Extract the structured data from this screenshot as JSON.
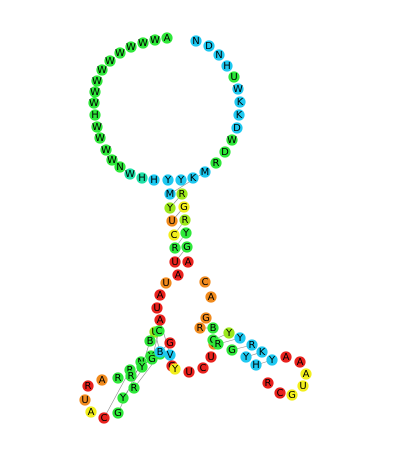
{
  "diagram": {
    "type": "rna-secondary-structure",
    "palette": {
      "red": "#e8211d",
      "orange": "#f08a1d",
      "yellow": "#f2ee1c",
      "lime": "#9be81c",
      "green": "#2ee83a",
      "teal": "#1ee0a6",
      "cyan": "#1ec8f0"
    },
    "nucleotides": [
      {
        "l": "A",
        "c": "green"
      },
      {
        "l": "W",
        "c": "green"
      },
      {
        "l": "W",
        "c": "green"
      },
      {
        "l": "W",
        "c": "green"
      },
      {
        "l": "W",
        "c": "green"
      },
      {
        "l": "W",
        "c": "green"
      },
      {
        "l": "W",
        "c": "green"
      },
      {
        "l": "W",
        "c": "green"
      },
      {
        "l": "W",
        "c": "green"
      },
      {
        "l": "W",
        "c": "green"
      },
      {
        "l": "H",
        "c": "green"
      },
      {
        "l": "W",
        "c": "green"
      },
      {
        "l": "W",
        "c": "green"
      },
      {
        "l": "W",
        "c": "green"
      },
      {
        "l": "W",
        "c": "green"
      },
      {
        "l": "N",
        "c": "green"
      },
      {
        "l": "W",
        "c": "teal"
      },
      {
        "l": "H",
        "c": "teal"
      },
      {
        "l": "H",
        "c": "cyan"
      },
      {
        "l": "Y",
        "c": "cyan"
      },
      {
        "l": "M",
        "c": "cyan"
      },
      {
        "l": "Y",
        "c": "lime"
      },
      {
        "l": "U",
        "c": "orange"
      },
      {
        "l": "C",
        "c": "yellow"
      },
      {
        "l": "R",
        "c": "green"
      },
      {
        "l": "U",
        "c": "red"
      },
      {
        "l": "A",
        "c": "red"
      },
      {
        "l": "U",
        "c": "orange"
      },
      {
        "l": "A",
        "c": "red"
      },
      {
        "l": "U",
        "c": "red"
      },
      {
        "l": "A",
        "c": "red"
      },
      {
        "l": "U",
        "c": "lime"
      },
      {
        "l": "C",
        "c": "green"
      },
      {
        "l": "B",
        "c": "green"
      },
      {
        "l": "G",
        "c": "red"
      },
      {
        "l": "C",
        "c": "green"
      },
      {
        "l": "Y",
        "c": "green"
      },
      {
        "l": "N",
        "c": "green"
      },
      {
        "l": "R",
        "c": "green"
      },
      {
        "l": "R",
        "c": "green"
      },
      {
        "l": "A",
        "c": "orange"
      },
      {
        "l": "R",
        "c": "red"
      },
      {
        "l": "U",
        "c": "orange"
      },
      {
        "l": "A",
        "c": "yellow"
      },
      {
        "l": "C",
        "c": "red"
      },
      {
        "l": "G",
        "c": "green"
      },
      {
        "l": "Y",
        "c": "green"
      },
      {
        "l": "R",
        "c": "green"
      },
      {
        "l": "R",
        "c": "green"
      },
      {
        "l": "Y",
        "c": "green"
      },
      {
        "l": "G",
        "c": "green"
      },
      {
        "l": "B",
        "c": "cyan"
      },
      {
        "l": "V",
        "c": "cyan"
      },
      {
        "l": "G",
        "c": "red"
      },
      {
        "l": "Y",
        "c": "yellow"
      },
      {
        "l": "U",
        "c": "red"
      },
      {
        "l": "C",
        "c": "red"
      },
      {
        "l": "U",
        "c": "red"
      },
      {
        "l": "G",
        "c": "orange"
      },
      {
        "l": "R",
        "c": "orange"
      },
      {
        "l": "C",
        "c": "green"
      },
      {
        "l": "R",
        "c": "green"
      },
      {
        "l": "G",
        "c": "green"
      },
      {
        "l": "Y",
        "c": "cyan"
      },
      {
        "l": "H",
        "c": "cyan"
      },
      {
        "l": "R",
        "c": "red"
      },
      {
        "l": "C",
        "c": "red"
      },
      {
        "l": "G",
        "c": "yellow"
      },
      {
        "l": "U",
        "c": "yellow"
      },
      {
        "l": "A",
        "c": "yellow"
      },
      {
        "l": "A",
        "c": "red"
      },
      {
        "l": "A",
        "c": "red"
      },
      {
        "l": "Y",
        "c": "cyan"
      },
      {
        "l": "K",
        "c": "cyan"
      },
      {
        "l": "R",
        "c": "cyan"
      },
      {
        "l": "Y",
        "c": "cyan"
      },
      {
        "l": "Y",
        "c": "lime"
      },
      {
        "l": "B",
        "c": "green"
      },
      {
        "l": "G",
        "c": "orange"
      },
      {
        "l": "A",
        "c": "orange"
      },
      {
        "l": "C",
        "c": "orange"
      },
      {
        "l": "A",
        "c": "red"
      },
      {
        "l": "G",
        "c": "green"
      },
      {
        "l": "Y",
        "c": "green"
      },
      {
        "l": "R",
        "c": "lime"
      },
      {
        "l": "G",
        "c": "yellow"
      },
      {
        "l": "R",
        "c": "lime"
      },
      {
        "l": "Y",
        "c": "cyan"
      },
      {
        "l": "K",
        "c": "cyan"
      },
      {
        "l": "M",
        "c": "cyan"
      },
      {
        "l": "R",
        "c": "green"
      },
      {
        "l": "D",
        "c": "green"
      },
      {
        "l": "W",
        "c": "green"
      },
      {
        "l": "D",
        "c": "cyan"
      },
      {
        "l": "K",
        "c": "cyan"
      },
      {
        "l": "K",
        "c": "cyan"
      },
      {
        "l": "W",
        "c": "cyan"
      },
      {
        "l": "U",
        "c": "green"
      },
      {
        "l": "H",
        "c": "cyan"
      },
      {
        "l": "N",
        "c": "cyan"
      },
      {
        "l": "D",
        "c": "cyan"
      },
      {
        "l": "N",
        "c": "cyan"
      },
      {
        "l": "K",
        "c": "cyan"
      },
      {
        "l": "B",
        "c": "cyan"
      }
    ]
  }
}
